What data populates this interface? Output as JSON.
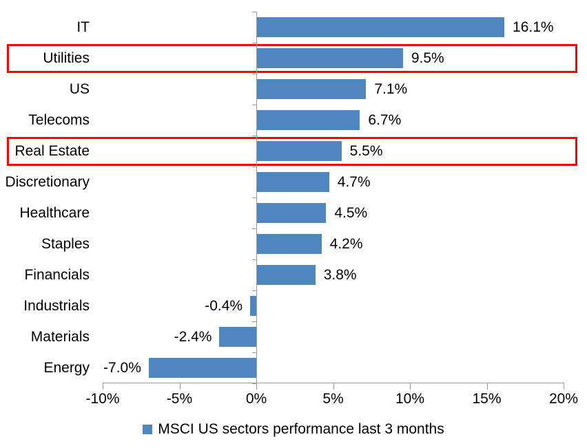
{
  "chart_data": {
    "type": "bar",
    "orientation": "horizontal",
    "title": "",
    "xlabel": "",
    "ylabel": "",
    "categories": [
      "IT",
      "Utilities",
      "US",
      "Telecoms",
      "Real Estate",
      "Discretionary",
      "Healthcare",
      "Staples",
      "Financials",
      "Industrials",
      "Materials",
      "Energy"
    ],
    "values": [
      16.1,
      9.5,
      7.1,
      6.7,
      5.5,
      4.7,
      4.5,
      4.2,
      3.8,
      -0.4,
      -2.4,
      -7.0
    ],
    "value_labels": [
      "16.1%",
      "9.5%",
      "7.1%",
      "6.7%",
      "5.5%",
      "4.7%",
      "4.5%",
      "4.2%",
      "3.8%",
      "-0.4%",
      "-2.4%",
      "-7.0%"
    ],
    "highlighted_categories": [
      "Utilities",
      "Real Estate"
    ],
    "xlim": [
      -10,
      20
    ],
    "x_ticks": [
      {
        "value": -10,
        "label": "-10%"
      },
      {
        "value": -5,
        "label": "-5%"
      },
      {
        "value": 0,
        "label": "0%"
      },
      {
        "value": 5,
        "label": "5%"
      },
      {
        "value": 10,
        "label": "10%"
      },
      {
        "value": 15,
        "label": "15%"
      },
      {
        "value": 20,
        "label": "20%"
      }
    ],
    "grid": false,
    "legend": {
      "position": "bottom-center",
      "label": "MSCI US sectors performance last 3 months"
    },
    "colors": {
      "bar": "#4E86BE",
      "highlight_border": "#FF0000",
      "axis": "#9A9A9A",
      "text": "#000000"
    }
  }
}
